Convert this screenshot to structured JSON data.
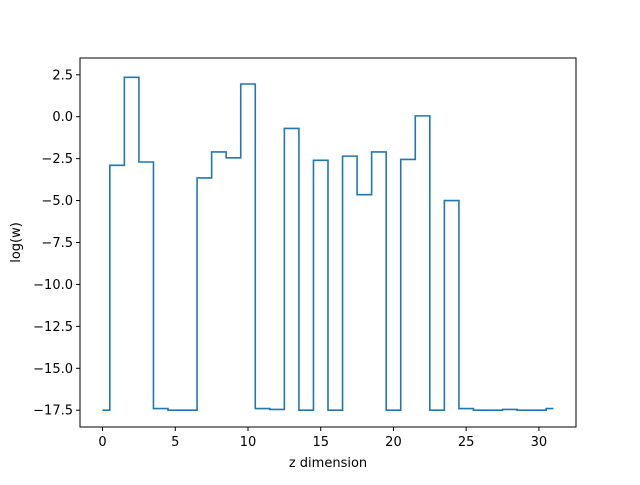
{
  "chart_data": {
    "type": "line",
    "drawstyle": "steps-mid",
    "title": "",
    "xlabel": "z dimension",
    "ylabel": "log(w)",
    "xlim": [
      -1.55,
      32.55
    ],
    "ylim": [
      -18.5,
      3.5
    ],
    "xticks": [
      0,
      5,
      10,
      15,
      20,
      25,
      30
    ],
    "xtick_labels": [
      "0",
      "5",
      "10",
      "15",
      "20",
      "25",
      "30"
    ],
    "yticks": [
      2.5,
      0.0,
      -2.5,
      -5.0,
      -7.5,
      -10.0,
      -12.5,
      -15.0,
      -17.5
    ],
    "ytick_labels": [
      "2.5",
      "0.0",
      "−2.5",
      "−5.0",
      "−7.5",
      "−10.0",
      "−12.5",
      "−15.0",
      "−17.5"
    ],
    "grid": false,
    "legend": false,
    "series": [
      {
        "color": "#1f77b4",
        "x": [
          0,
          1,
          2,
          3,
          4,
          5,
          6,
          7,
          8,
          9,
          10,
          11,
          12,
          13,
          14,
          15,
          16,
          17,
          18,
          19,
          20,
          21,
          22,
          23,
          24,
          25,
          26,
          27,
          28,
          29,
          30,
          31
        ],
        "values": [
          -17.5,
          -2.9,
          2.35,
          -2.7,
          -17.4,
          -17.5,
          -17.5,
          -3.65,
          -2.1,
          -2.45,
          1.95,
          -17.4,
          -17.45,
          -0.7,
          -17.5,
          -2.6,
          -17.5,
          -2.35,
          -4.65,
          -2.1,
          -17.5,
          -2.55,
          0.05,
          -17.5,
          -5.0,
          -17.4,
          -17.5,
          -17.5,
          -17.45,
          -17.5,
          -17.5,
          -17.4
        ]
      }
    ]
  }
}
